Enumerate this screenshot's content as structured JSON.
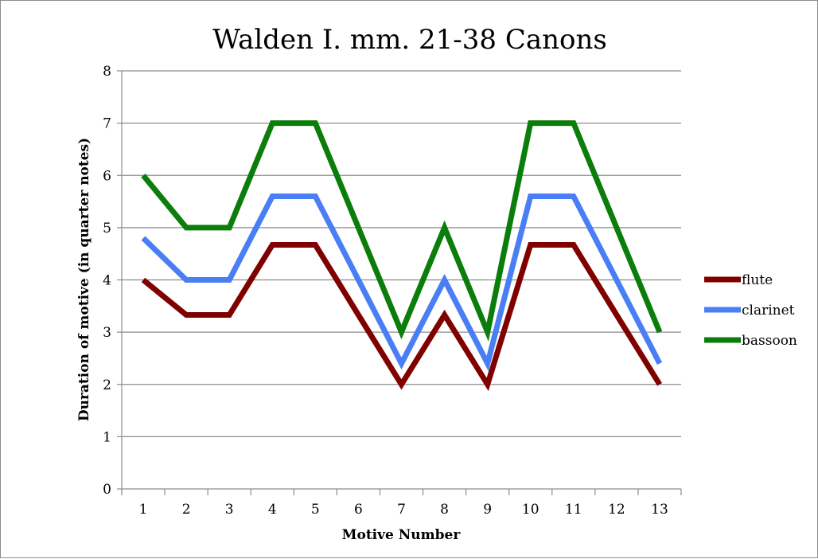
{
  "chart_data": {
    "type": "line",
    "title": "Walden I. mm. 21-38 Canons",
    "xlabel": "Motive Number",
    "ylabel": "Duration of motive (in quarter notes)",
    "categories": [
      "1",
      "2",
      "3",
      "4",
      "5",
      "6",
      "7",
      "8",
      "9",
      "10",
      "11",
      "12",
      "13"
    ],
    "ylim": [
      0,
      8
    ],
    "yticks": [
      "0",
      "1",
      "2",
      "3",
      "4",
      "5",
      "6",
      "7",
      "8"
    ],
    "grid": true,
    "legend": "right",
    "series": [
      {
        "name": "flute",
        "color": "#800000",
        "values": [
          4,
          3.33,
          3.33,
          4.67,
          4.67,
          3.33,
          2,
          3.33,
          2,
          4.67,
          4.67,
          3.33,
          2
        ]
      },
      {
        "name": "clarinet",
        "color": "#4a7ef5",
        "values": [
          4.8,
          4,
          4,
          5.6,
          5.6,
          4,
          2.4,
          4,
          2.4,
          5.6,
          5.6,
          4,
          2.4
        ]
      },
      {
        "name": "bassoon",
        "color": "#0a7d0a",
        "values": [
          6,
          5,
          5,
          7,
          7,
          5,
          3,
          5,
          3,
          7,
          7,
          5,
          3
        ]
      }
    ]
  }
}
